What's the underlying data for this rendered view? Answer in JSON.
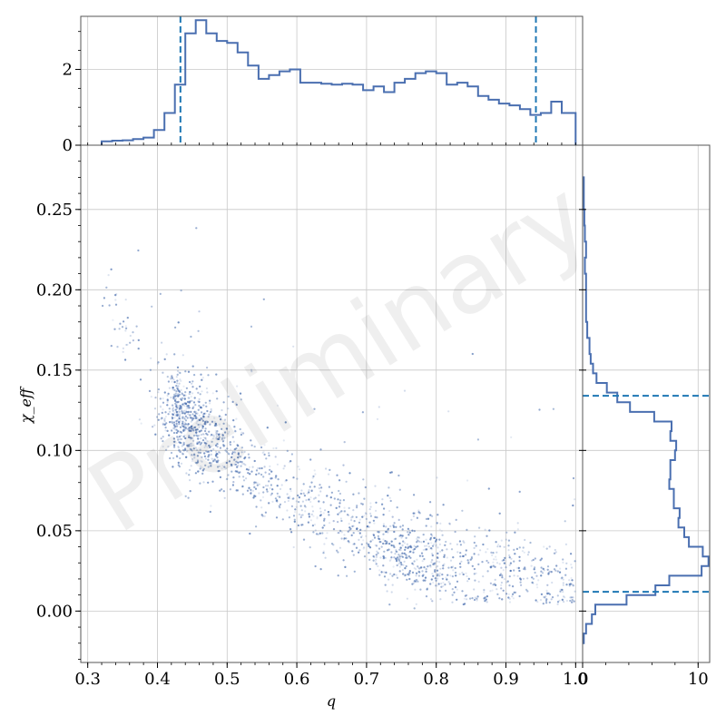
{
  "watermark": "Preliminary",
  "colors": {
    "histogram": "#4a6fb0",
    "dashed": "#1f77b4",
    "scatter": "#4a6fb0",
    "grid": "#c8c8c8",
    "frame": "#555555"
  },
  "chart_data": [
    {
      "panel": "joint",
      "type": "scatter",
      "xlabel": "q",
      "ylabel": "χ_eff",
      "xlim": [
        0.29,
        1.01
      ],
      "ylim": [
        -0.032,
        0.29
      ],
      "grid": true,
      "xticks": [
        "0.3",
        "0.4",
        "0.5",
        "0.6",
        "0.7",
        "0.8",
        "0.9",
        "1.0"
      ],
      "yticks": [
        "0.00",
        "0.05",
        "0.10",
        "0.15",
        "0.20",
        "0.25"
      ],
      "density_ridge": {
        "q": [
          0.4,
          0.45,
          0.5,
          0.55,
          0.6,
          0.65,
          0.7,
          0.75,
          0.8,
          0.85,
          0.9,
          0.95,
          1.0
        ],
        "chi_eff_center": [
          0.13,
          0.115,
          0.098,
          0.083,
          0.07,
          0.058,
          0.048,
          0.038,
          0.032,
          0.026,
          0.022,
          0.019,
          0.017
        ]
      }
    },
    {
      "panel": "top-marginal",
      "type": "step-histogram",
      "variable": "q",
      "ylim": [
        0,
        3.4
      ],
      "yticks": [
        "0",
        "2"
      ],
      "bin_edges": [
        0.32,
        0.335,
        0.35,
        0.365,
        0.38,
        0.395,
        0.41,
        0.425,
        0.44,
        0.455,
        0.47,
        0.485,
        0.5,
        0.515,
        0.53,
        0.545,
        0.56,
        0.575,
        0.59,
        0.605,
        0.62,
        0.635,
        0.65,
        0.665,
        0.68,
        0.695,
        0.71,
        0.725,
        0.74,
        0.755,
        0.77,
        0.785,
        0.8,
        0.815,
        0.83,
        0.845,
        0.86,
        0.875,
        0.89,
        0.905,
        0.92,
        0.935,
        0.95,
        0.965,
        0.98,
        1.0
      ],
      "counts": [
        0.1,
        0.12,
        0.13,
        0.16,
        0.2,
        0.4,
        0.85,
        1.6,
        2.95,
        3.3,
        2.95,
        2.75,
        2.7,
        2.45,
        2.1,
        1.75,
        1.85,
        1.95,
        2.0,
        1.65,
        1.65,
        1.62,
        1.6,
        1.62,
        1.6,
        1.45,
        1.55,
        1.4,
        1.65,
        1.75,
        1.9,
        1.95,
        1.9,
        1.6,
        1.65,
        1.55,
        1.3,
        1.2,
        1.1,
        1.05,
        0.95,
        0.8,
        0.85,
        1.15,
        0.85
      ],
      "credible_interval": [
        0.433,
        0.943
      ]
    },
    {
      "panel": "right-marginal",
      "type": "step-histogram",
      "orientation": "horizontal",
      "variable": "chi_eff",
      "xlim": [
        0,
        11
      ],
      "xticks": [
        "0",
        "10"
      ],
      "bin_edges": [
        -0.02,
        -0.014,
        -0.008,
        -0.002,
        0.004,
        0.01,
        0.016,
        0.022,
        0.028,
        0.034,
        0.04,
        0.046,
        0.052,
        0.058,
        0.064,
        0.07,
        0.076,
        0.082,
        0.088,
        0.094,
        0.1,
        0.106,
        0.112,
        0.118,
        0.124,
        0.13,
        0.136,
        0.142,
        0.148,
        0.154,
        0.16,
        0.17,
        0.18,
        0.19,
        0.2,
        0.21,
        0.22,
        0.23,
        0.24,
        0.25,
        0.27
      ],
      "counts": [
        0.1,
        0.3,
        0.8,
        1.1,
        3.8,
        6.3,
        7.5,
        10.3,
        10.9,
        10.4,
        9.2,
        8.8,
        8.3,
        8.4,
        7.9,
        7.9,
        7.5,
        7.6,
        7.6,
        8.0,
        8.1,
        7.6,
        7.7,
        6.2,
        4.1,
        3.0,
        2.1,
        1.2,
        0.9,
        0.7,
        0.6,
        0.4,
        0.3,
        0.3,
        0.3,
        0.2,
        0.3,
        0.2,
        0.15,
        0.1
      ],
      "credible_interval": [
        0.012,
        0.134
      ]
    }
  ]
}
